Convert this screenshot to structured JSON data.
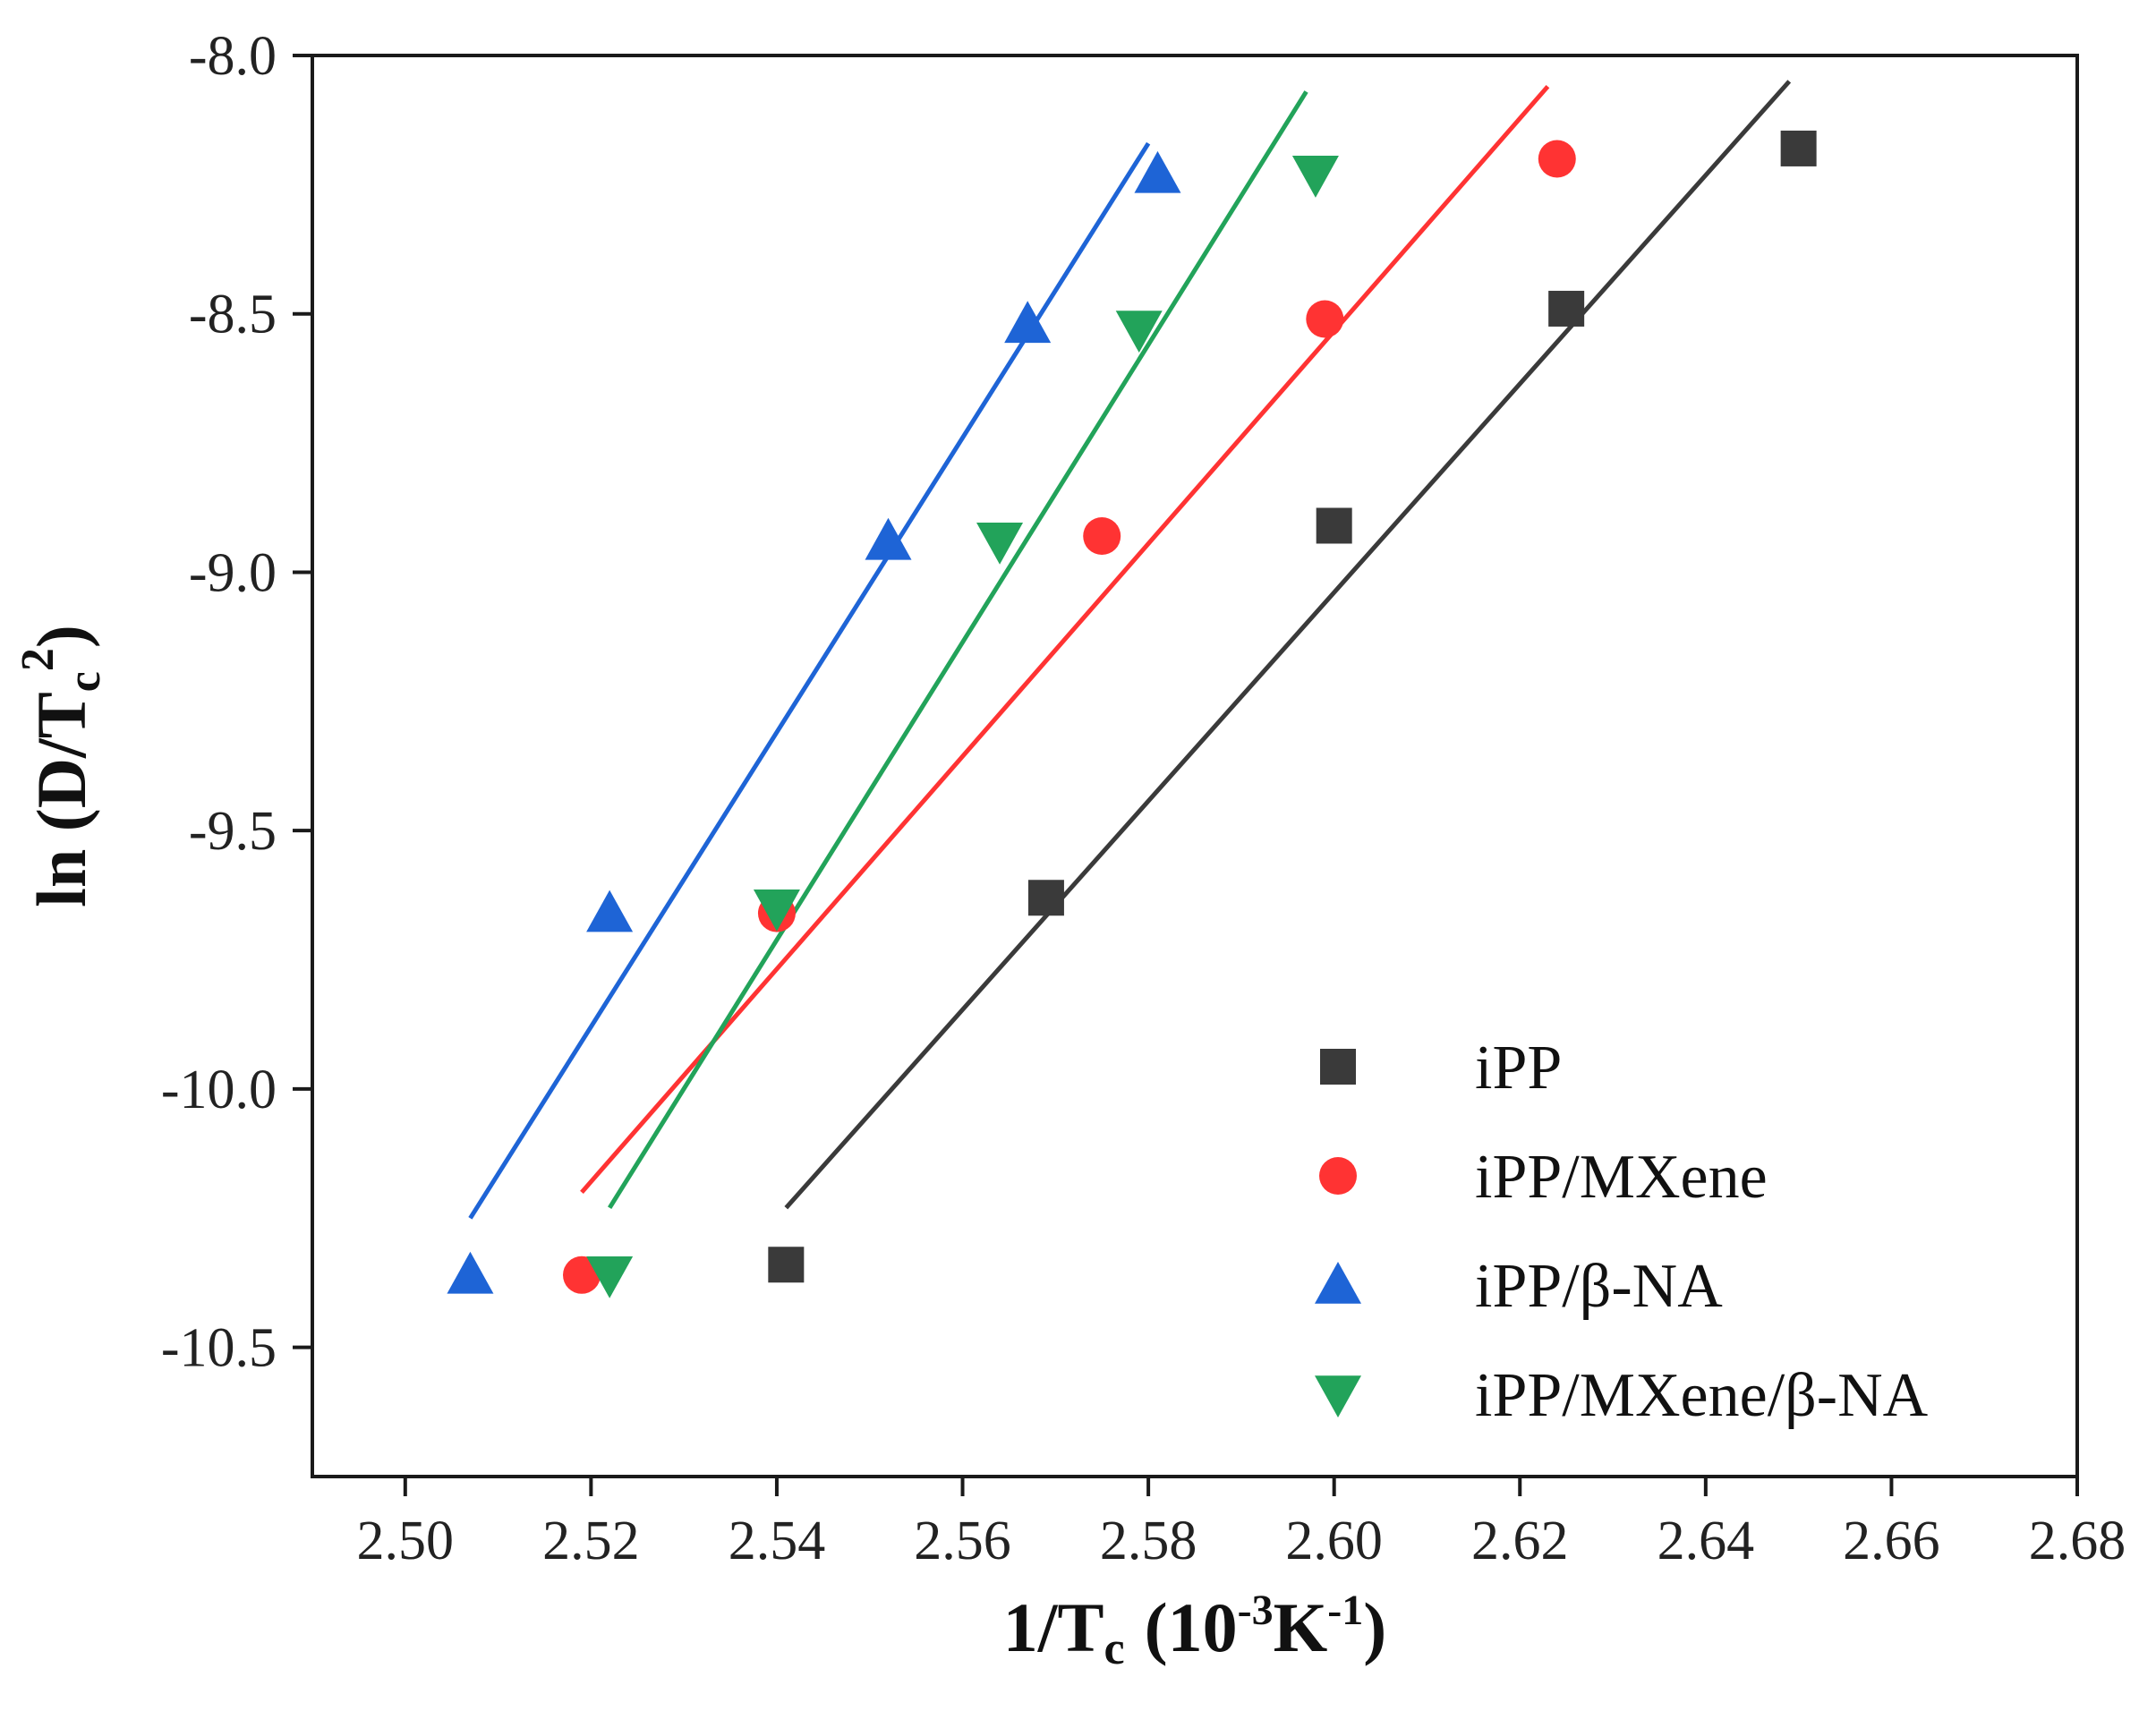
{
  "chart_data": {
    "type": "scatter",
    "title": "",
    "x_label": {
      "prefix": "1/T",
      "subscript": "c",
      "unit_open": "(10",
      "exp1": "-3",
      "unit_mid": "K",
      "exp2": "-1",
      "unit_close": ")"
    },
    "y_label": {
      "prefix": "ln (D/T",
      "subscript": "c",
      "superscript": "2",
      "suffix": ")"
    },
    "xlim": [
      2.49,
      2.68
    ],
    "ylim": [
      -10.75,
      -8.0
    ],
    "x_ticks": [
      "2.50",
      "2.52",
      "2.54",
      "2.56",
      "2.58",
      "2.60",
      "2.62",
      "2.64",
      "2.66",
      "2.68"
    ],
    "y_ticks": [
      "-8.0",
      "-8.5",
      "-9.0",
      "-9.5",
      "-10.0",
      "-10.5"
    ],
    "grid": false,
    "legend_position": "bottom-right",
    "series": [
      {
        "name": "iPP",
        "marker": "square",
        "color": "#3a3a3a",
        "points": [
          [
            2.541,
            -10.34
          ],
          [
            2.569,
            -9.63
          ],
          [
            2.6,
            -8.91
          ],
          [
            2.625,
            -8.49
          ],
          [
            2.65,
            -8.18
          ]
        ],
        "fit": [
          [
            2.541,
            -10.23
          ],
          [
            2.649,
            -8.05
          ]
        ]
      },
      {
        "name": "iPP/MXene",
        "marker": "circle",
        "color": "#ff3333",
        "points": [
          [
            2.519,
            -10.36
          ],
          [
            2.54,
            -9.66
          ],
          [
            2.575,
            -8.93
          ],
          [
            2.599,
            -8.51
          ],
          [
            2.624,
            -8.2
          ]
        ],
        "fit": [
          [
            2.519,
            -10.2
          ],
          [
            2.623,
            -8.06
          ]
        ]
      },
      {
        "name": "iPP/β-NA",
        "marker": "triangle-up",
        "color": "#1e64d6",
        "points": [
          [
            2.507,
            -10.36
          ],
          [
            2.522,
            -9.66
          ],
          [
            2.552,
            -8.94
          ],
          [
            2.567,
            -8.52
          ],
          [
            2.581,
            -8.23
          ]
        ],
        "fit": [
          [
            2.507,
            -10.25
          ],
          [
            2.58,
            -8.17
          ]
        ]
      },
      {
        "name": "iPP/MXene/β-NA",
        "marker": "triangle-down",
        "color": "#22a35a",
        "points": [
          [
            2.522,
            -10.36
          ],
          [
            2.54,
            -9.65
          ],
          [
            2.564,
            -8.94
          ],
          [
            2.579,
            -8.53
          ],
          [
            2.598,
            -8.23
          ]
        ],
        "fit": [
          [
            2.522,
            -10.23
          ],
          [
            2.597,
            -8.07
          ]
        ]
      }
    ]
  }
}
